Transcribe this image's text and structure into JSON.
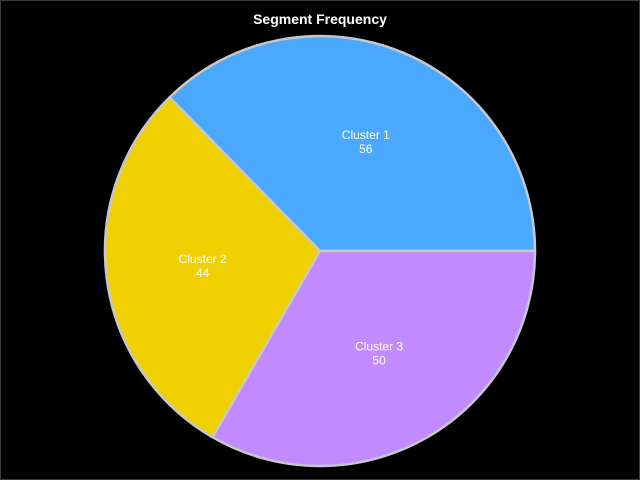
{
  "chart_data": {
    "type": "pie",
    "title": "Segment Frequency",
    "slices": [
      {
        "label": "Cluster 1",
        "value": 56,
        "color": "#4aa8ff"
      },
      {
        "label": "Cluster 2",
        "value": 44,
        "color": "#f0d000"
      },
      {
        "label": "Cluster 3",
        "value": 50,
        "color": "#c28aff"
      }
    ],
    "start_angle_deg": 0,
    "direction": "counterclockwise",
    "edge_color": "#c8c8c8"
  }
}
